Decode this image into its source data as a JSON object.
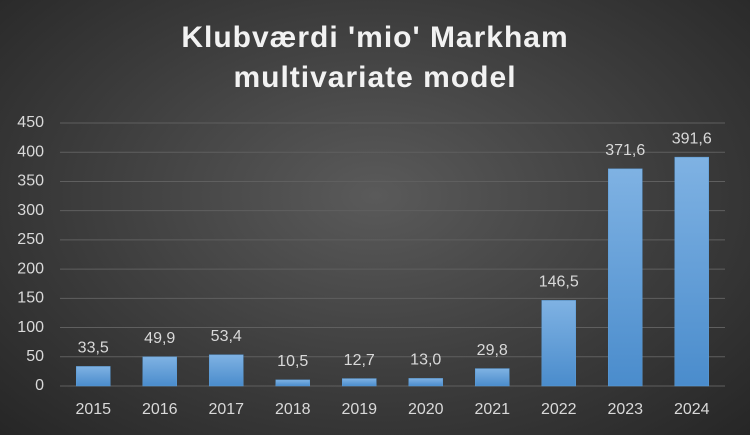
{
  "chart_data": {
    "type": "bar",
    "title": "Klubværdi 'mio' Markham multivariate model",
    "categories": [
      "2015",
      "2016",
      "2017",
      "2018",
      "2019",
      "2020",
      "2021",
      "2022",
      "2023",
      "2024"
    ],
    "values": [
      33.5,
      49.9,
      53.4,
      10.5,
      12.7,
      13.0,
      29.8,
      146.5,
      371.6,
      391.6
    ],
    "value_labels": [
      "33,5",
      "49,9",
      "53,4",
      "10,5",
      "12,7",
      "13,0",
      "29,8",
      "146,5",
      "371,6",
      "391,6"
    ],
    "color": "#5b9bd5",
    "ylim": [
      0,
      450
    ],
    "yticks": [
      0,
      50,
      100,
      150,
      200,
      250,
      300,
      350,
      400,
      450
    ],
    "grid": true
  }
}
